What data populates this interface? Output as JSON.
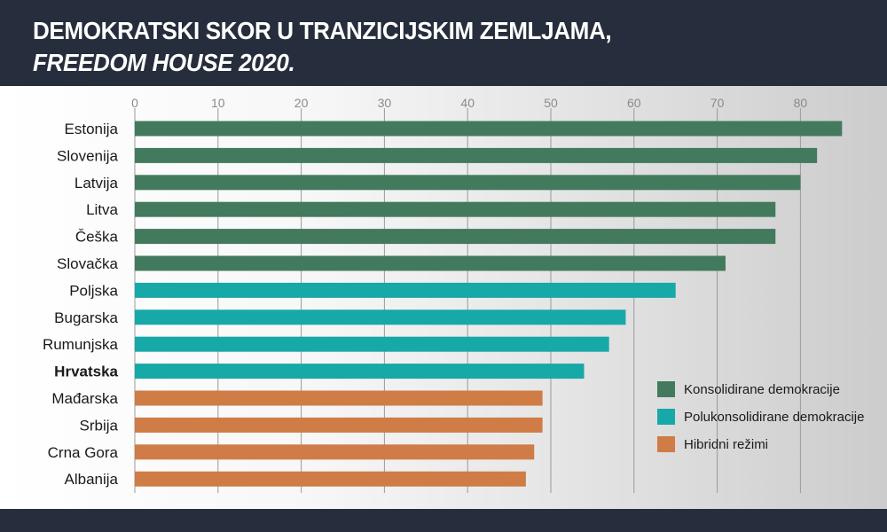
{
  "title": {
    "line1": "DEMOKRATSKI SKOR U TRANZICIJSKIM ZEMLJAMA,",
    "line2": "FREEDOM HOUSE 2020."
  },
  "chart_data": {
    "type": "bar",
    "orientation": "horizontal",
    "title": "DEMOKRATSKI SKOR U TRANZICIJSKIM ZEMLJAMA, FREEDOM HOUSE 2020.",
    "xlim": [
      0,
      85
    ],
    "xticks": [
      0,
      10,
      20,
      30,
      40,
      50,
      60,
      70,
      80
    ],
    "grid": "vertical",
    "legend_position": "bottom-right",
    "highlighted_category": "Hrvatska",
    "categories": [
      "Estonija",
      "Slovenija",
      "Latvija",
      "Litva",
      "Češka",
      "Slovačka",
      "Poljska",
      "Bugarska",
      "Rumunjska",
      "Hrvatska",
      "Mađarska",
      "Srbija",
      "Crna Gora",
      "Albanija"
    ],
    "values": [
      85,
      82,
      80,
      77,
      77,
      71,
      65,
      59,
      57,
      54,
      49,
      49,
      48,
      47
    ],
    "groups": [
      0,
      0,
      0,
      0,
      0,
      0,
      1,
      1,
      1,
      1,
      2,
      2,
      2,
      2
    ],
    "series": [
      {
        "name": "Konsolidirane demokracije",
        "color": "#437a5d"
      },
      {
        "name": "Polukonsolidirane demokracije",
        "color": "#17a8a8"
      },
      {
        "name": "Hibridni režimi",
        "color": "#cf7c46"
      }
    ]
  }
}
